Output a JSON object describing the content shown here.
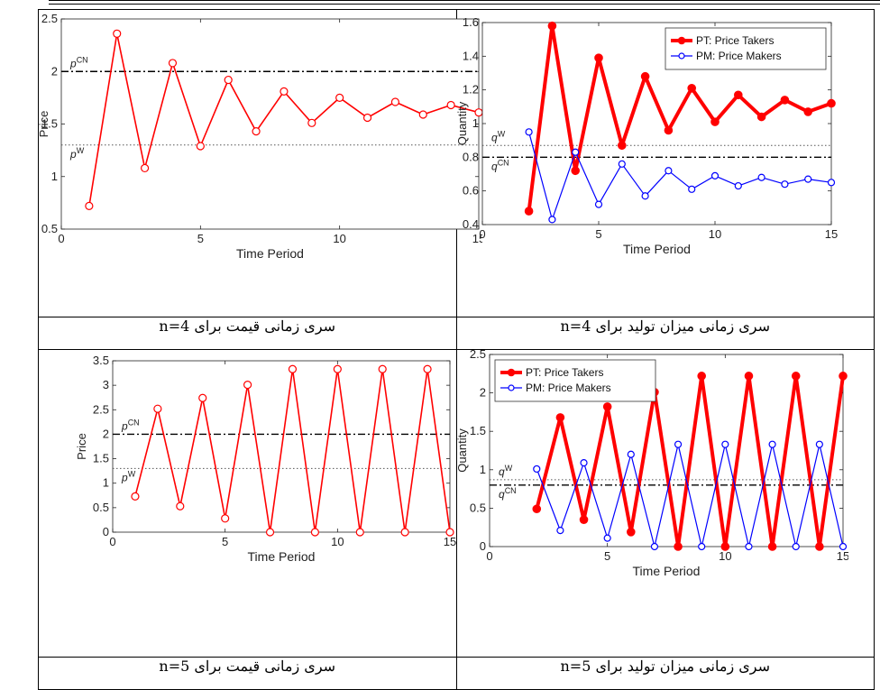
{
  "captions": [
    "سری زمانی قیمت برای n=4",
    "سری زمانی میزان تولید برای n=4",
    "سری زمانی قیمت برای n=5",
    "سری زمانی میزان تولید برای n=5"
  ],
  "colors": {
    "pt": "#ff0000",
    "pm": "#0000ff",
    "ref": "#000000"
  },
  "chart_data": [
    {
      "type": "line",
      "xlabel": "Time Period",
      "ylabel": "Price",
      "xlim": [
        0,
        15
      ],
      "ylim": [
        0.5,
        2.5
      ],
      "xticks": [
        0,
        5,
        10,
        15
      ],
      "yticks": [
        0.5,
        1,
        1.5,
        2,
        2.5
      ],
      "legend": null,
      "series": [
        {
          "key": "price",
          "x": [
            1,
            2,
            3,
            4,
            5,
            6,
            7,
            8,
            9,
            10,
            11,
            12,
            13,
            14,
            15
          ],
          "values": [
            0.72,
            2.36,
            1.08,
            2.08,
            1.29,
            1.92,
            1.43,
            1.81,
            1.51,
            1.75,
            1.56,
            1.71,
            1.59,
            1.68,
            1.61
          ]
        }
      ],
      "reference_lines": [
        {
          "label": "p",
          "sup": "CN",
          "y": 2.0,
          "style": "dashdot"
        },
        {
          "label": "p",
          "sup": "W",
          "y": 1.3,
          "style": "dotted"
        }
      ]
    },
    {
      "type": "line",
      "xlabel": "Time Period",
      "ylabel": "Quantity",
      "xlim": [
        0,
        15
      ],
      "ylim": [
        0.4,
        1.6
      ],
      "xticks": [
        0,
        5,
        10,
        15
      ],
      "yticks": [
        0.4,
        0.6,
        0.8,
        1,
        1.2,
        1.4,
        1.6
      ],
      "legend": "top-right",
      "series": [
        {
          "key": "pt",
          "name": "PT: Price Takers",
          "x": [
            2,
            3,
            4,
            5,
            6,
            7,
            8,
            9,
            10,
            11,
            12,
            13,
            14,
            15
          ],
          "values": [
            0.48,
            1.58,
            0.72,
            1.39,
            0.87,
            1.28,
            0.96,
            1.21,
            1.01,
            1.17,
            1.04,
            1.14,
            1.07,
            1.12
          ]
        },
        {
          "key": "pm",
          "name": "PM: Price Makers",
          "x": [
            2,
            3,
            4,
            5,
            6,
            7,
            8,
            9,
            10,
            11,
            12,
            13,
            14,
            15
          ],
          "values": [
            0.95,
            0.43,
            0.83,
            0.52,
            0.76,
            0.57,
            0.72,
            0.61,
            0.69,
            0.63,
            0.68,
            0.64,
            0.67,
            0.65
          ]
        }
      ],
      "reference_lines": [
        {
          "label": "q",
          "sup": "W",
          "y": 0.87,
          "style": "dotted"
        },
        {
          "label": "q",
          "sup": "CN",
          "y": 0.8,
          "style": "dashdot"
        }
      ]
    },
    {
      "type": "line",
      "xlabel": "Time Period",
      "ylabel": "Price",
      "xlim": [
        0,
        15
      ],
      "ylim": [
        0,
        3.5
      ],
      "xticks": [
        0,
        5,
        10,
        15
      ],
      "yticks": [
        0,
        0.5,
        1,
        1.5,
        2,
        2.5,
        3,
        3.5
      ],
      "legend": null,
      "series": [
        {
          "key": "price",
          "x": [
            1,
            2,
            3,
            4,
            5,
            6,
            7,
            8,
            9,
            10,
            11,
            12,
            13,
            14,
            15
          ],
          "values": [
            0.73,
            2.52,
            0.53,
            2.74,
            0.28,
            3.01,
            0,
            3.33,
            0,
            3.33,
            0,
            3.33,
            0,
            3.33,
            0
          ]
        }
      ],
      "reference_lines": [
        {
          "label": "p",
          "sup": "CN",
          "y": 2.0,
          "style": "dashdot"
        },
        {
          "label": "p",
          "sup": "W",
          "y": 1.3,
          "style": "dotted"
        }
      ]
    },
    {
      "type": "line",
      "xlabel": "Time Period",
      "ylabel": "Quantity",
      "xlim": [
        0,
        15
      ],
      "ylim": [
        0,
        2.5
      ],
      "xticks": [
        0,
        5,
        10,
        15
      ],
      "yticks": [
        0,
        0.5,
        1,
        1.5,
        2,
        2.5
      ],
      "legend": "top-left",
      "series": [
        {
          "key": "pt",
          "name": "PT: Price Takers",
          "x": [
            2,
            3,
            4,
            5,
            6,
            7,
            8,
            9,
            10,
            11,
            12,
            13,
            14,
            15
          ],
          "values": [
            0.49,
            1.68,
            0.35,
            1.82,
            0.19,
            2.01,
            0,
            2.22,
            0,
            2.22,
            0,
            2.22,
            0,
            2.22
          ]
        },
        {
          "key": "pm",
          "name": "PM: Price Makers",
          "x": [
            2,
            3,
            4,
            5,
            6,
            7,
            8,
            9,
            10,
            11,
            12,
            13,
            14,
            15
          ],
          "values": [
            1.01,
            0.21,
            1.09,
            0.11,
            1.2,
            0,
            1.33,
            0,
            1.33,
            0,
            1.33,
            0,
            1.33,
            0
          ]
        }
      ],
      "reference_lines": [
        {
          "label": "q",
          "sup": "W",
          "y": 0.87,
          "style": "dotted"
        },
        {
          "label": "q",
          "sup": "CN",
          "y": 0.8,
          "style": "dashdot"
        }
      ]
    }
  ]
}
